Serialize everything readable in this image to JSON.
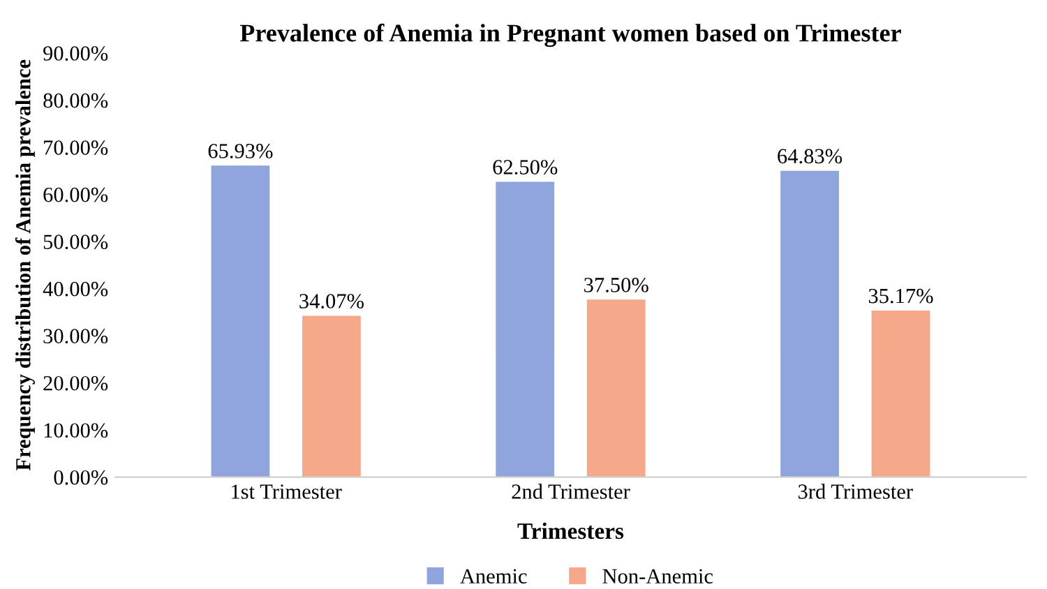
{
  "chart_data": {
    "type": "bar",
    "title": "Prevalence of Anemia in Pregnant women based on Trimester",
    "xlabel": "Trimesters",
    "ylabel": "Frequency distribution of Anemia prevalence",
    "categories": [
      "1st Trimester",
      "2nd Trimester",
      "3rd Trimester"
    ],
    "series": [
      {
        "name": "Anemic",
        "color": "#8fa5dc",
        "values": [
          65.93,
          62.5,
          64.83
        ],
        "value_labels": [
          "65.93%",
          "62.50%",
          "64.83%"
        ]
      },
      {
        "name": "Non-Anemic",
        "color": "#f5a98a",
        "values": [
          34.07,
          37.5,
          35.17
        ],
        "value_labels": [
          "34.07%",
          "37.50%",
          "35.17%"
        ]
      }
    ],
    "ylim": [
      0,
      90
    ],
    "yticks": [
      {
        "value": 0,
        "label": "0.00%"
      },
      {
        "value": 10,
        "label": "10.00%"
      },
      {
        "value": 20,
        "label": "20.00%"
      },
      {
        "value": 30,
        "label": "30.00%"
      },
      {
        "value": 40,
        "label": "40.00%"
      },
      {
        "value": 50,
        "label": "50.00%"
      },
      {
        "value": 60,
        "label": "60.00%"
      },
      {
        "value": 70,
        "label": "70.00%"
      },
      {
        "value": 80,
        "label": "80.00%"
      },
      {
        "value": 90,
        "label": "90.00%"
      }
    ],
    "grid": false,
    "legend": "bottom"
  }
}
